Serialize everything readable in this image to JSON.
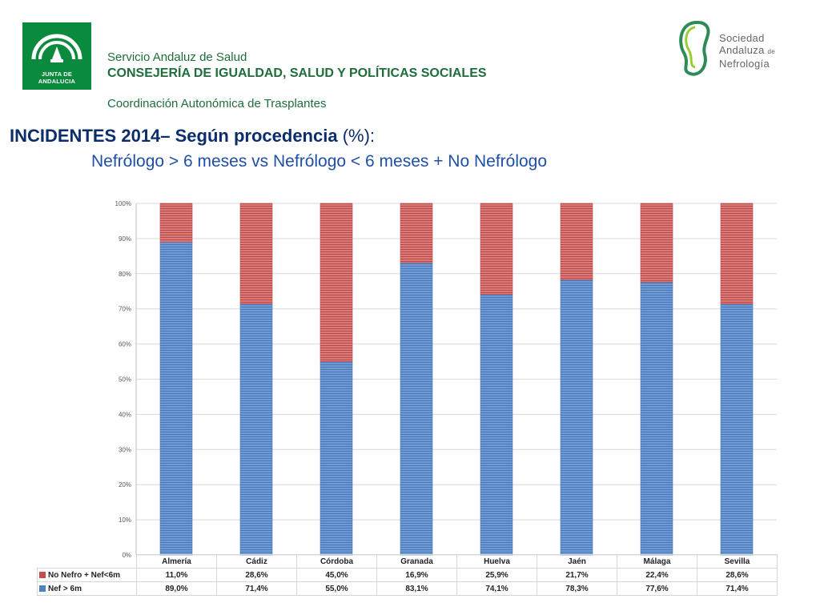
{
  "header": {
    "junta_logo_text": "JUNTA DE ANDALUCIA",
    "service_name": "Servicio Andaluz de Salud",
    "ministry": "CONSEJERÍA DE IGUALDAD, SALUD Y POLÍTICAS SOCIALES",
    "coordination": "Coordinación Autonómica de Trasplantes",
    "sen_logo": {
      "line1": "Sociedad",
      "line2": "Andaluza",
      "de": "de",
      "line3": "Nefrología"
    }
  },
  "title": {
    "line1_main": "INCIDENTES 2014– Según procedencia ",
    "line1_pct": "(%):",
    "line2": "Nefrólogo > 6 meses   vs     Nefrólogo < 6 meses + No Nefrólogo"
  },
  "colors": {
    "red": "#c0504d",
    "blue": "#4f81bd",
    "title": "#0b2d6b"
  },
  "chart_data": {
    "type": "bar",
    "stacked": true,
    "ylim": [
      0,
      100
    ],
    "y_ticks": [
      "0%",
      "10%",
      "20%",
      "30%",
      "40%",
      "50%",
      "60%",
      "70%",
      "80%",
      "90%",
      "100%"
    ],
    "categories": [
      "Almería",
      "Cádiz",
      "Córdoba",
      "Granada",
      "Huelva",
      "Jaén",
      "Málaga",
      "Sevilla"
    ],
    "series": [
      {
        "name": "Nef > 6m",
        "color": "#4f81bd",
        "values": [
          89.0,
          71.4,
          55.0,
          83.1,
          74.1,
          78.3,
          77.6,
          71.4
        ],
        "labels": [
          "89,0%",
          "71,4%",
          "55,0%",
          "83,1%",
          "74,1%",
          "78,3%",
          "77,6%",
          "71,4%"
        ]
      },
      {
        "name": "No Nefro + Nef<6m",
        "color": "#c0504d",
        "values": [
          11.0,
          28.6,
          45.0,
          16.9,
          25.9,
          21.7,
          22.4,
          28.6
        ],
        "labels": [
          "11,0%",
          "28,6%",
          "45,0%",
          "16,9%",
          "25,9%",
          "21,7%",
          "22,4%",
          "28,6%"
        ]
      }
    ],
    "grid": true,
    "legend": "data-table"
  }
}
